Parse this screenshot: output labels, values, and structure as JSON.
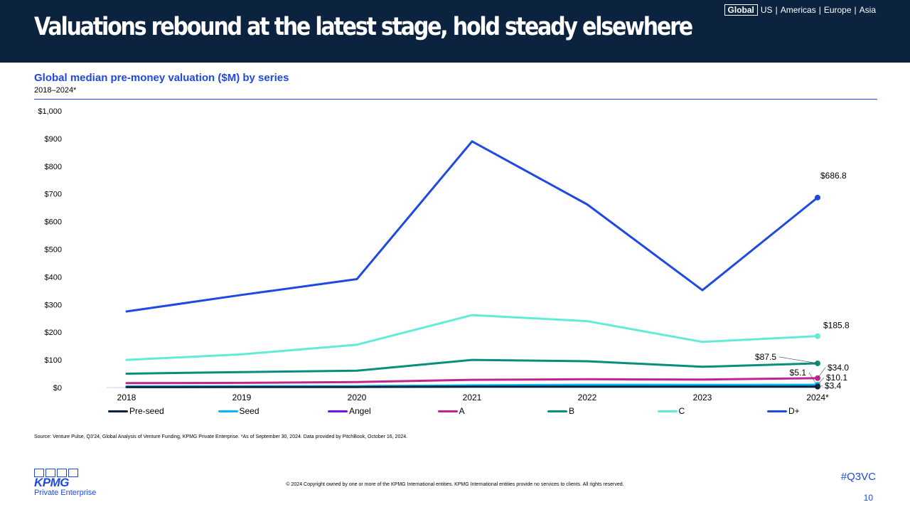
{
  "header": {
    "title": "Valuations rebound at the latest stage, hold steady elsewhere",
    "regions": [
      {
        "label": "Global",
        "active": true
      },
      {
        "label": "US",
        "active": false
      },
      {
        "label": "Americas",
        "active": false
      },
      {
        "label": "Europe",
        "active": false
      },
      {
        "label": "Asia",
        "active": false
      }
    ],
    "background_color": "#0c233f"
  },
  "chart_data": {
    "type": "line",
    "title": "Global median pre-money valuation ($M) by series",
    "subtitle": "2018–2024*",
    "categories": [
      "2018",
      "2019",
      "2020",
      "2021",
      "2022",
      "2023",
      "2024*"
    ],
    "ylim": [
      0,
      1000
    ],
    "yticks": [
      "$0",
      "$100",
      "$200",
      "$300",
      "$400",
      "$500",
      "$600",
      "$700",
      "$800",
      "$900",
      "$1,000"
    ],
    "grid": false,
    "legend_position": "bottom",
    "series": [
      {
        "name": "Pre-seed",
        "color": "#0c233f",
        "values": [
          1.5,
          1.8,
          2.0,
          3.0,
          3.2,
          3.0,
          3.4
        ],
        "end_label": "$3.4"
      },
      {
        "name": "Seed",
        "color": "#00b8f5",
        "values": [
          4.0,
          4.5,
          5.0,
          8.0,
          10.0,
          9.5,
          10.1
        ],
        "end_label": "$10.1"
      },
      {
        "name": "Angel",
        "color": "#7213ea",
        "values": [
          3.0,
          3.5,
          4.0,
          5.0,
          5.5,
          5.0,
          5.1
        ],
        "end_label": "$5.1"
      },
      {
        "name": "A",
        "color": "#c1268f",
        "values": [
          16,
          17,
          20,
          28,
          30,
          29,
          34.0
        ],
        "end_label": "$34.0"
      },
      {
        "name": "B",
        "color": "#098e7e",
        "values": [
          50,
          56,
          61,
          100,
          95,
          75,
          87.5
        ],
        "end_label": "$87.5"
      },
      {
        "name": "C",
        "color": "#63ebda",
        "values": [
          100,
          120,
          155,
          262,
          240,
          165,
          185.8
        ],
        "end_label": "$185.8"
      },
      {
        "name": "D+",
        "color": "#1e49e2",
        "values": [
          275,
          335,
          392,
          890,
          662,
          352,
          686.8
        ],
        "end_label": "$686.8"
      }
    ]
  },
  "footer": {
    "source": "Source: Venture Pulse, Q3'24, Global Analysis of Venture Funding, KPMG Private Enterprise. *As of September 30, 2024. Data provided by PitchBook, October 16, 2024.",
    "copyright": "© 2024 Copyright owned by one or more of the KPMG International entities. KPMG International entities provide no services to clients. All rights reserved.",
    "logo_text": "KPMG",
    "logo_sub": "Private Enterprise",
    "hashtag": "#Q3VC",
    "page_number": "10"
  }
}
